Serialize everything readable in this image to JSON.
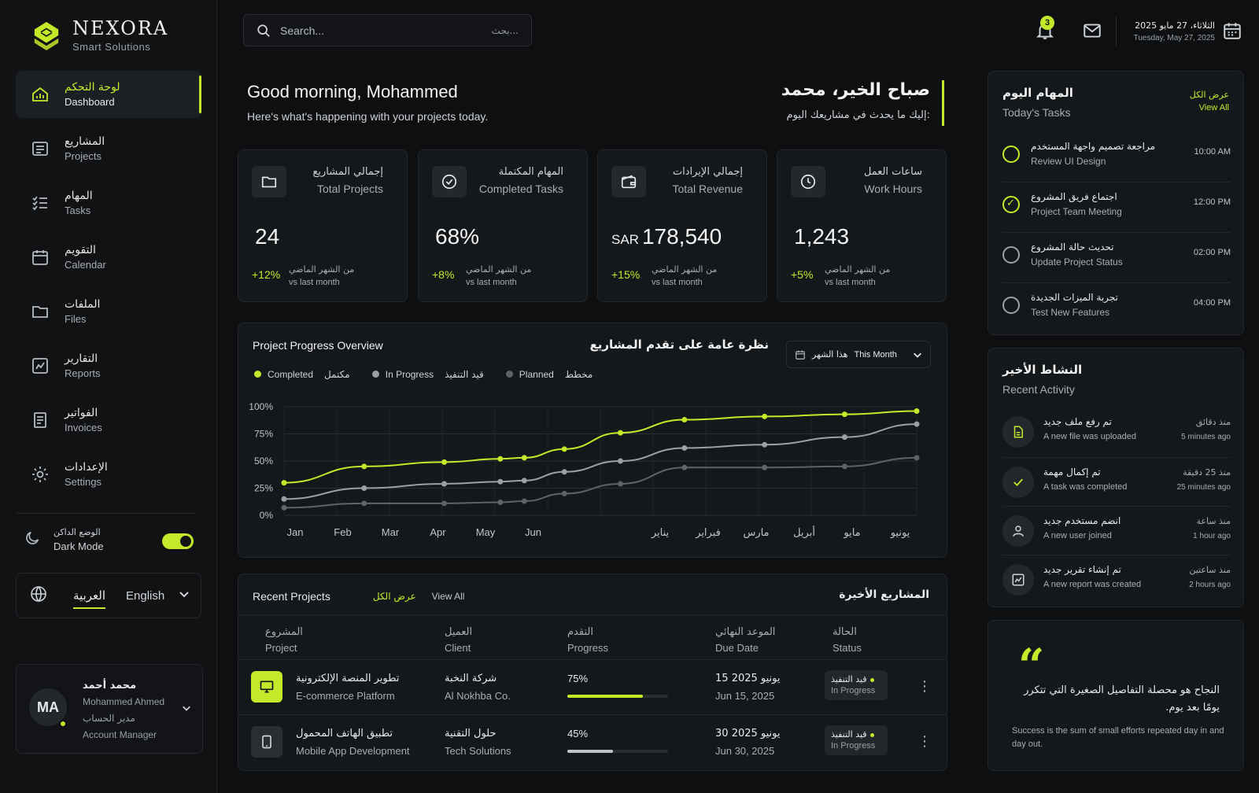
{
  "brand": {
    "name": "NEXORA",
    "tagline": "Smart Solutions"
  },
  "sidebar": {
    "items": [
      {
        "ar": "لوحة التحكم",
        "en": "Dashboard",
        "icon": "dashboard-icon",
        "active": true
      },
      {
        "ar": "المشاريع",
        "en": "Projects",
        "icon": "projects-icon"
      },
      {
        "ar": "المهام",
        "en": "Tasks",
        "icon": "tasks-icon"
      },
      {
        "ar": "التقويم",
        "en": "Calendar",
        "icon": "calendar-icon"
      },
      {
        "ar": "الملفات",
        "en": "Files",
        "icon": "folder-icon"
      },
      {
        "ar": "التقارير",
        "en": "Reports",
        "icon": "reports-icon"
      },
      {
        "ar": "الفواتير",
        "en": "Invoices",
        "icon": "invoice-icon"
      },
      {
        "ar": "الإعدادات",
        "en": "Settings",
        "icon": "gear-icon"
      }
    ],
    "dark_mode": {
      "ar": "الوضع الداكن",
      "en": "Dark Mode",
      "on": true
    },
    "language": {
      "ar": "العربية",
      "en": "English"
    },
    "profile": {
      "initials": "MA",
      "name_ar": "محمد أحمد",
      "name_en": "Mohammed Ahmed",
      "role_ar": "مدير الحساب",
      "role_en": "Account Manager"
    }
  },
  "topbar": {
    "search_placeholder": "Search...",
    "search_placeholder_ar": "بحث...",
    "notifications_count": "3",
    "date_ar": "الثلاثاء، 27 مايو 2025",
    "date_en": "Tuesday, May 27, 2025"
  },
  "greeting": {
    "en_title": "Good morning, Mohammed",
    "en_sub": "Here's what's happening with your projects today.",
    "ar_title": "صباح الخير، محمد",
    "ar_sub": "إليك ما يحدث في مشاريعك اليوم:"
  },
  "stats": [
    {
      "ar": "إجمالي المشاريع",
      "en": "Total Projects",
      "prefix": "",
      "value": "24",
      "change": "+12%",
      "vs_ar": "من الشهر الماضي",
      "vs_en": "vs last month",
      "icon": "folder-icon"
    },
    {
      "ar": "المهام المكتملة",
      "en": "Completed Tasks",
      "prefix": "",
      "value": "68%",
      "change": "+8%",
      "vs_ar": "من الشهر الماضي",
      "vs_en": "vs last month",
      "icon": "check-circle-icon"
    },
    {
      "ar": "إجمالي الإيرادات",
      "en": "Total Revenue",
      "prefix": "SAR",
      "value": "178,540",
      "change": "+15%",
      "vs_ar": "من الشهر الماضي",
      "vs_en": "vs last month",
      "icon": "wallet-icon"
    },
    {
      "ar": "ساعات العمل",
      "en": "Work Hours",
      "prefix": "",
      "value": "1,243",
      "change": "+5%",
      "vs_ar": "من الشهر الماضي",
      "vs_en": "vs last month",
      "icon": "clock-icon"
    }
  ],
  "chart_panel": {
    "title_en": "Project Progress Overview",
    "title_ar": "نظرة عامة على تقدم المشاريع",
    "period_ar": "هذا الشهر",
    "period_en": "This Month",
    "legend": [
      {
        "en": "Completed",
        "ar": "مكتمل"
      },
      {
        "en": "In Progress",
        "ar": "قيد التنفيذ"
      },
      {
        "en": "Planned",
        "ar": "مخطط"
      }
    ]
  },
  "chart_data": {
    "type": "line",
    "x_labels_en": [
      "Jan",
      "Feb",
      "Mar",
      "Apr",
      "May",
      "Jun"
    ],
    "x_labels_ar": [
      "يناير",
      "فبراير",
      "مارس",
      "أبريل",
      "مايو",
      "يونيو"
    ],
    "y_ticks": [
      "0%",
      "25%",
      "50%",
      "75%",
      "100%"
    ],
    "ylim": [
      0,
      100
    ],
    "x": [
      0,
      1,
      2,
      2.7,
      3,
      3.5,
      4.2,
      5,
      6,
      7,
      7.9
    ],
    "series": [
      {
        "name": "Completed",
        "color": "#c6e82a",
        "values": [
          30,
          45,
          49,
          52,
          53,
          61,
          76,
          88,
          91,
          93,
          96
        ]
      },
      {
        "name": "In Progress",
        "color": "#9aa0a6",
        "values": [
          15,
          25,
          29,
          31,
          32,
          40,
          50,
          62,
          65,
          72,
          84
        ]
      },
      {
        "name": "Planned",
        "color": "#5f6368",
        "values": [
          7,
          11,
          11,
          12,
          13,
          20,
          29,
          44,
          44,
          45,
          53
        ]
      }
    ],
    "grid": true
  },
  "projects": {
    "title_en": "Recent Projects",
    "title_ar": "المشاريع الأخيرة",
    "view_all_ar": "عرض الكل",
    "view_all_en": "View All",
    "columns": [
      {
        "ar": "المشروع",
        "en": "Project"
      },
      {
        "ar": "العميل",
        "en": "Client"
      },
      {
        "ar": "التقدم",
        "en": "Progress"
      },
      {
        "ar": "الموعد النهائي",
        "en": "Due Date"
      },
      {
        "ar": "الحالة",
        "en": "Status"
      }
    ],
    "rows": [
      {
        "name_ar": "تطوير المنصة الإلكترونية",
        "name_en": "E-commerce Platform",
        "client_ar": "شركة النخبة",
        "client_en": "Al Nokhba Co.",
        "progress": "75%",
        "progress_value": 0.75,
        "due_ar": "15 يونيو 2025",
        "due_en": "Jun 15, 2025",
        "status_ar": "قيد التنفيذ",
        "status_en": "In Progress",
        "icon": "monitor-icon"
      },
      {
        "name_ar": "تطبيق الهاتف المحمول",
        "name_en": "Mobile App Development",
        "client_ar": "حلول التقنية",
        "client_en": "Tech Solutions",
        "progress": "45%",
        "progress_value": 0.45,
        "due_ar": "30 يونيو 2025",
        "due_en": "Jun 30, 2025",
        "status_ar": "قيد التنفيذ",
        "status_en": "In Progress",
        "icon": "phone-icon"
      }
    ]
  },
  "tasks": {
    "title_ar": "المهام اليوم",
    "title_en": "Today's Tasks",
    "view_all_ar": "عرض الكل",
    "view_all_en": "View All",
    "items": [
      {
        "ar": "مراجعة تصميم واجهة المستخدم",
        "en": "Review UI Design",
        "time": "10:00 AM",
        "done": false
      },
      {
        "ar": "اجتماع فريق المشروع",
        "en": "Project Team Meeting",
        "time": "12:00 PM",
        "done": true
      },
      {
        "ar": "تحديث حالة المشروع",
        "en": "Update Project Status",
        "time": "02:00 PM",
        "done": false
      },
      {
        "ar": "تجربة الميزات الجديدة",
        "en": "Test New Features",
        "time": "04:00 PM",
        "done": false
      }
    ]
  },
  "activity": {
    "title_ar": "النشاط الأخير",
    "title_en": "Recent Activity",
    "items": [
      {
        "ar": "تم رفع ملف جديد",
        "en": "A new file was uploaded",
        "time_ar": "منذ دقائق",
        "time_en": "5 minutes ago",
        "icon": "file-icon"
      },
      {
        "ar": "تم إكمال مهمة",
        "en": "A task was completed",
        "time_ar": "منذ 25 دقيقة",
        "time_en": "25 minutes ago",
        "icon": "check-icon"
      },
      {
        "ar": "انضم مستخدم جديد",
        "en": "A new user joined",
        "time_ar": "منذ ساعة",
        "time_en": "1 hour ago",
        "icon": "user-icon"
      },
      {
        "ar": "تم إنشاء تقرير جديد",
        "en": "A new report was created",
        "time_ar": "منذ ساعتين",
        "time_en": "2 hours ago",
        "icon": "report-icon"
      }
    ]
  },
  "quote": {
    "ar": "النجاح هو محصلة التفاصيل الصغيرة التي تتكرر يومًا بعد يوم.",
    "en": "Success is the sum of small efforts repeated day in and day out."
  },
  "colors": {
    "accent": "#c6e82a",
    "background": "#0d0f11",
    "panel": "#15181b"
  }
}
